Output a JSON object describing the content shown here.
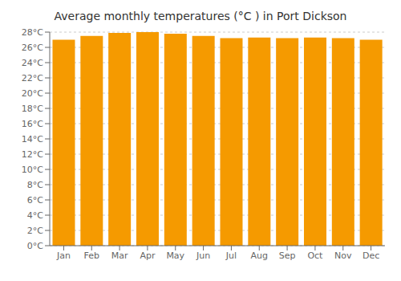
{
  "chart_data": {
    "type": "bar",
    "title": "Average monthly temperatures (°C ) in Port Dickson",
    "categories": [
      "Jan",
      "Feb",
      "Mar",
      "Apr",
      "May",
      "Jun",
      "Jul",
      "Aug",
      "Sep",
      "Oct",
      "Nov",
      "Dec"
    ],
    "values": [
      27.0,
      27.5,
      27.9,
      28.0,
      27.8,
      27.5,
      27.2,
      27.3,
      27.2,
      27.3,
      27.2,
      27.0
    ],
    "color": "#F59A00",
    "ylim": [
      0,
      28
    ],
    "yticks": [
      {
        "value": 0,
        "label": "0°C"
      },
      {
        "value": 2,
        "label": "2°C"
      },
      {
        "value": 4,
        "label": "4°C"
      },
      {
        "value": 6,
        "label": "6°C"
      },
      {
        "value": 8,
        "label": "8°C"
      },
      {
        "value": 10,
        "label": "10°C"
      },
      {
        "value": 12,
        "label": "12°C"
      },
      {
        "value": 14,
        "label": "14°C"
      },
      {
        "value": 16,
        "label": "16°C"
      },
      {
        "value": 18,
        "label": "18°C"
      },
      {
        "value": 20,
        "label": "20°C"
      },
      {
        "value": 22,
        "label": "22°C"
      },
      {
        "value": 24,
        "label": "24°C"
      },
      {
        "value": 26,
        "label": "26°C"
      },
      {
        "value": 28,
        "label": "28°C"
      }
    ],
    "grid": true
  }
}
